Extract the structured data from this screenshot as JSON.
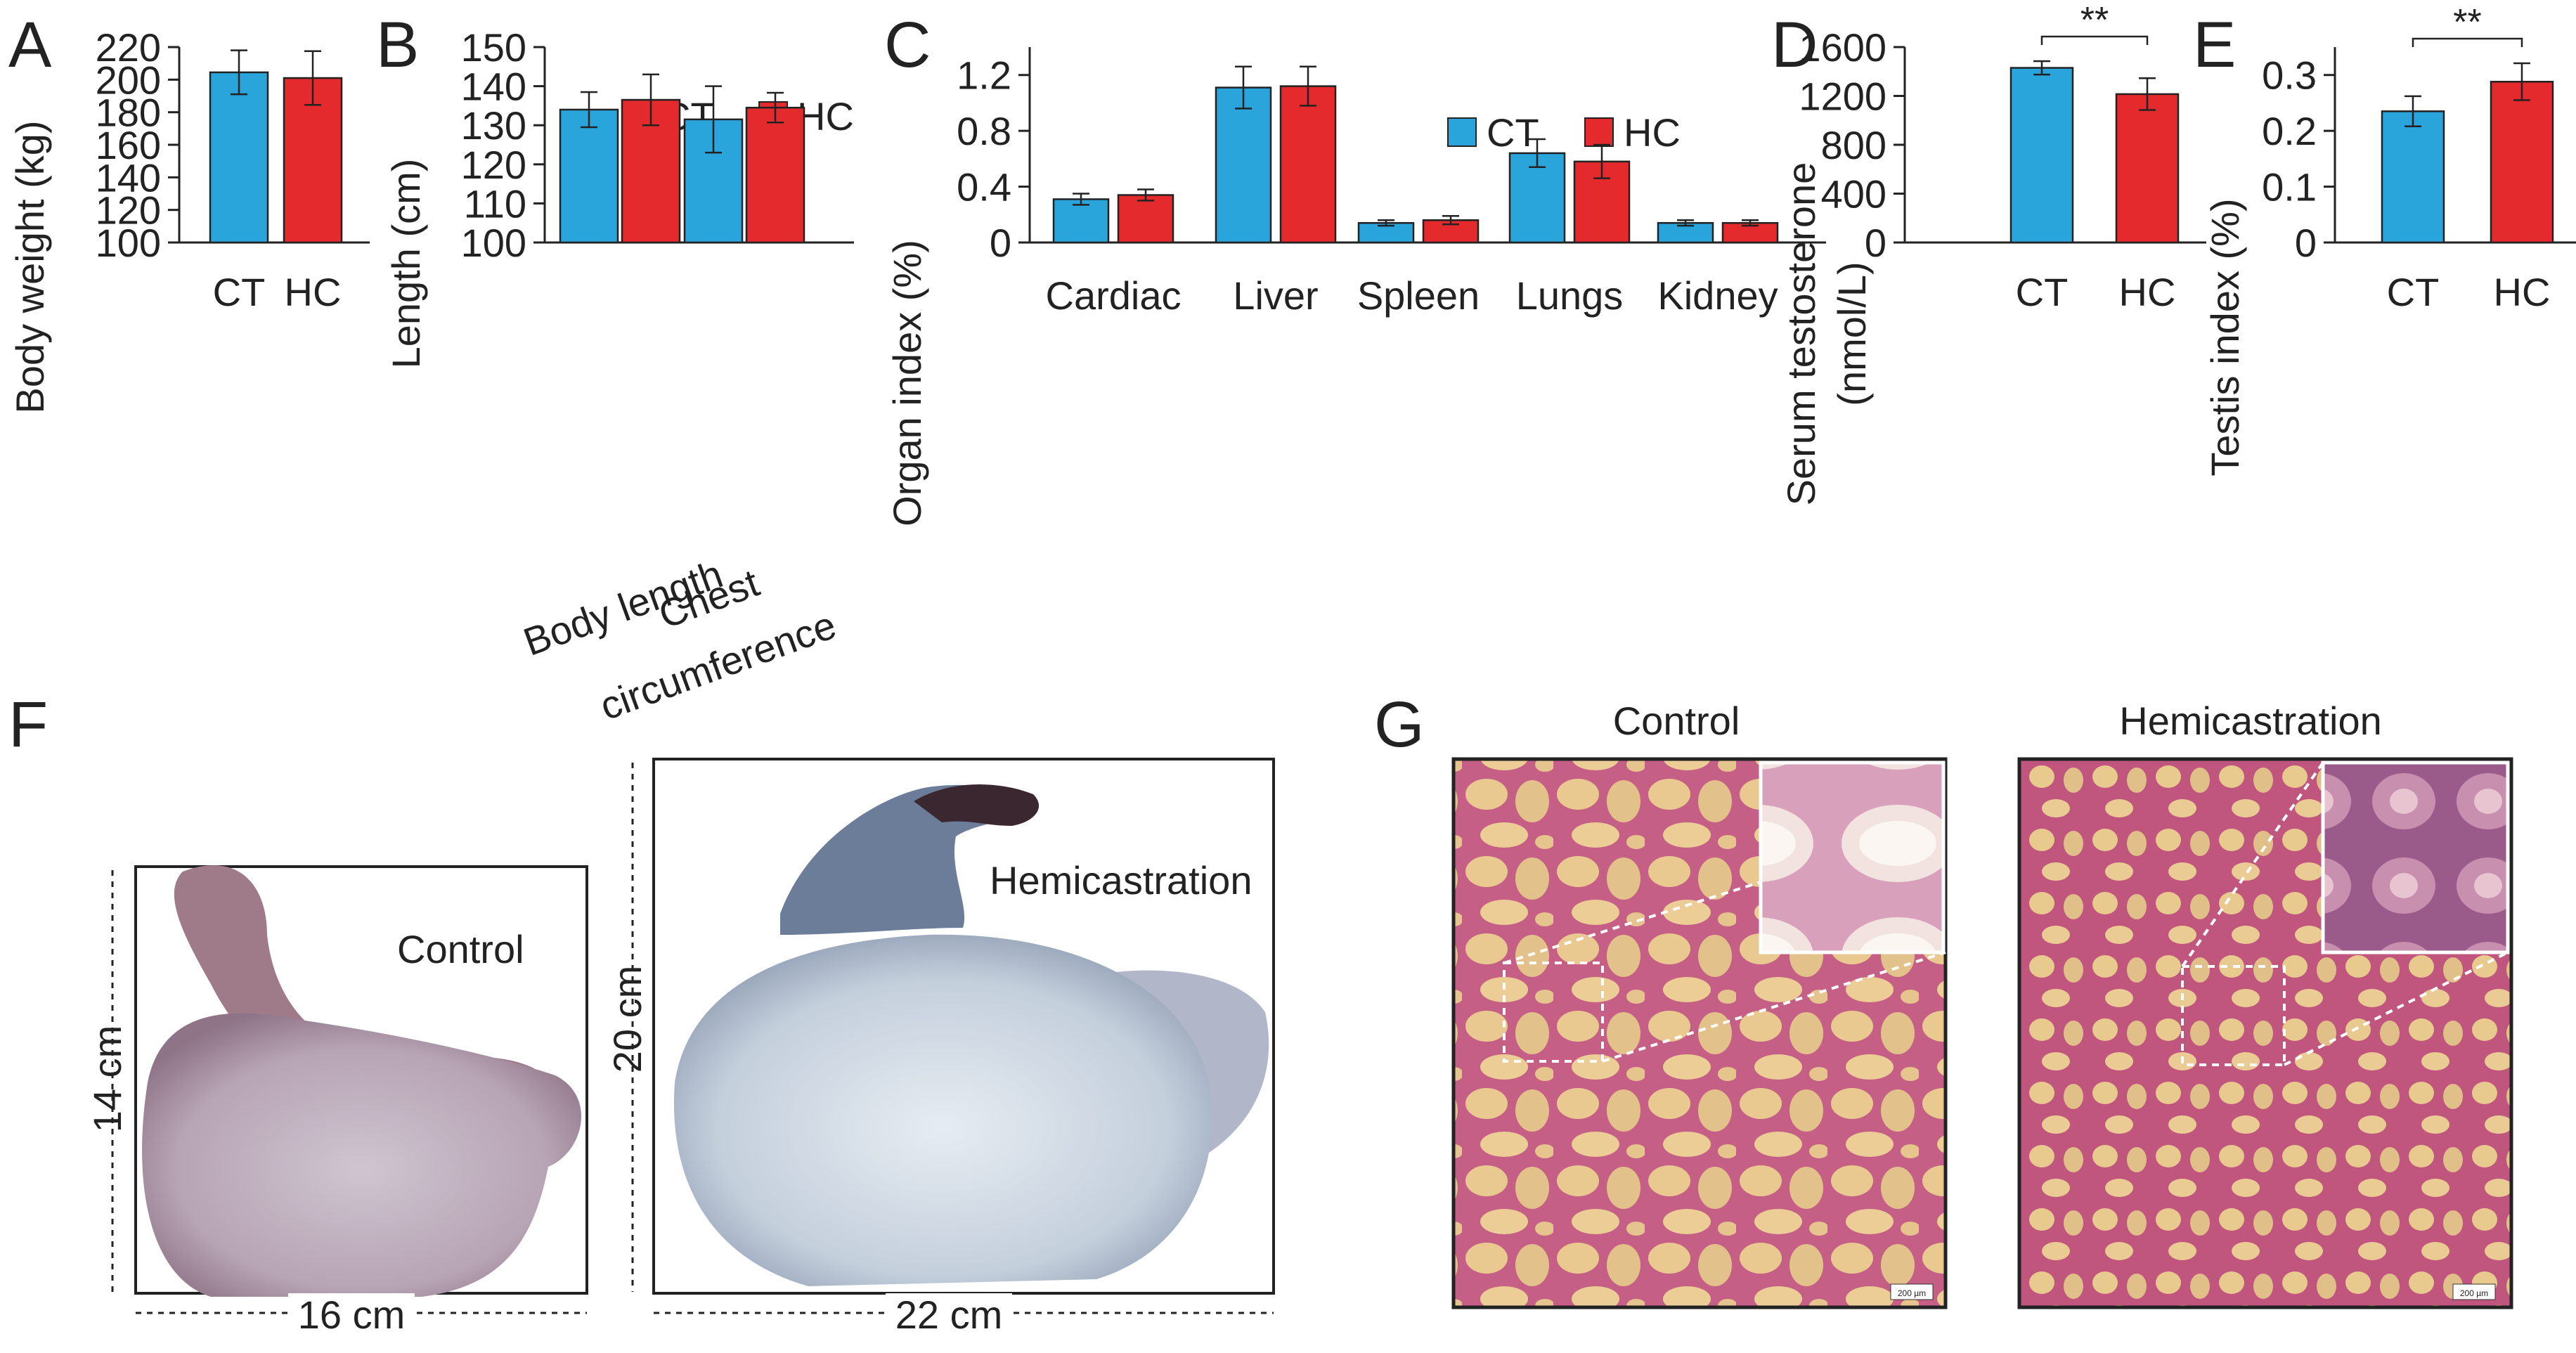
{
  "colors": {
    "CT": "#2aa5dc",
    "HC": "#e52a2e",
    "axis": "#222222"
  },
  "panels": {
    "A": "A",
    "B": "B",
    "C": "C",
    "D": "D",
    "E": "E",
    "F": "F",
    "G": "G"
  },
  "chart_data": [
    {
      "panel": "A",
      "type": "bar",
      "categories": [
        "CT",
        "HC"
      ],
      "values": [
        204.5,
        201.0
      ],
      "errors": [
        13.5,
        16.5
      ],
      "ylabel": "Body weight (kg)",
      "ylim": [
        100,
        220
      ],
      "yticks": [
        "100",
        "120",
        "140",
        "160",
        "180",
        "200",
        "220"
      ]
    },
    {
      "panel": "B",
      "type": "bar",
      "categories": [
        "Body length",
        "Chest circumference"
      ],
      "series": [
        {
          "name": "CT",
          "values": [
            134.0,
            131.5
          ],
          "errors": [
            4.5,
            8.5
          ]
        },
        {
          "name": "HC",
          "values": [
            136.5,
            134.5
          ],
          "errors": [
            6.5,
            3.8
          ]
        }
      ],
      "ylabel": "Length (cm)",
      "ylim": [
        100,
        150
      ],
      "yticks": [
        "100",
        "110",
        "120",
        "130",
        "140",
        "150"
      ],
      "legend": "top-right"
    },
    {
      "panel": "C",
      "type": "bar",
      "categories": [
        "Cardiac",
        "Liver",
        "Spleen",
        "Lungs",
        "Kidney"
      ],
      "series": [
        {
          "name": "CT",
          "values": [
            0.31,
            1.11,
            0.14,
            0.64,
            0.14
          ],
          "errors": [
            0.04,
            0.15,
            0.02,
            0.1,
            0.02
          ]
        },
        {
          "name": "HC",
          "values": [
            0.34,
            1.12,
            0.16,
            0.58,
            0.14
          ],
          "errors": [
            0.04,
            0.14,
            0.03,
            0.12,
            0.02
          ]
        }
      ],
      "ylabel": "Organ index (%)",
      "ylim": [
        0,
        1.4
      ],
      "yticks": [
        "0",
        "0.4",
        "0.8",
        "1.2"
      ],
      "legend": "top-right"
    },
    {
      "panel": "D",
      "type": "bar",
      "categories": [
        "CT",
        "HC"
      ],
      "values": [
        1430,
        1215
      ],
      "errors": [
        55,
        130
      ],
      "ylabel_lines": [
        "Serum testosterone",
        "(nmol/L)"
      ],
      "ylim": [
        0,
        1600
      ],
      "yticks": [
        "0",
        "400",
        "800",
        "1200",
        "1600"
      ],
      "significance": "**"
    },
    {
      "panel": "E",
      "type": "bar",
      "categories": [
        "CT",
        "HC"
      ],
      "values": [
        0.235,
        0.288
      ],
      "errors": [
        0.027,
        0.033
      ],
      "ylabel": "Testis index (%)",
      "ylim": [
        0,
        0.35
      ],
      "yticks": [
        "0",
        "0.1",
        "0.2",
        "0.3"
      ],
      "significance": "**"
    }
  ],
  "photos": {
    "F": {
      "control_label": "Control",
      "control_height": "14 cm",
      "control_width": "16 cm",
      "hemi_label": "Hemicastration",
      "hemi_height": "20 cm",
      "hemi_width": "22 cm"
    },
    "G": {
      "control_title": "Control",
      "hemi_title": "Hemicastration",
      "scale_bar_text": "200 µm"
    }
  }
}
